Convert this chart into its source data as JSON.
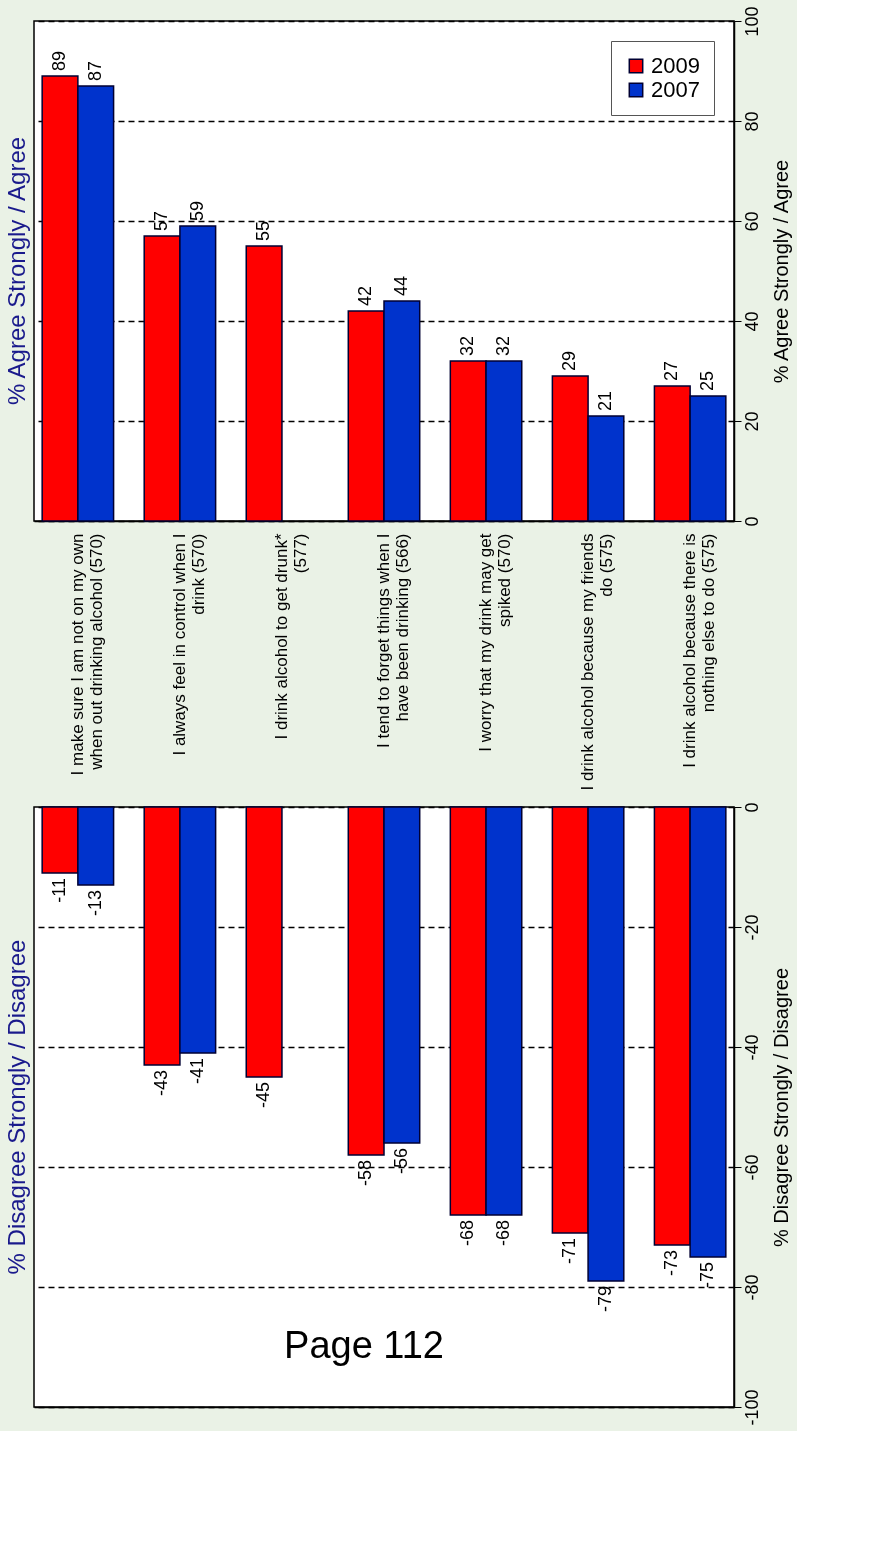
{
  "chart_data": [
    {
      "type": "bar",
      "title": "% Agree Strongly / Agree",
      "ylabel": "% Agree Strongly / Agree",
      "categories": [
        "I make sure I am not on my own when out drinking alcohol (570)",
        "I always feel in control when I drink (570)",
        "I drink alcohol to get drunk* (577)",
        "I tend to forget things when I have been drinking (566)",
        "I worry that my drink may get spiked (570)",
        "I drink alcohol because my friends do (575)",
        "I drink alcohol because there is nothing else to do (575)"
      ],
      "series": [
        {
          "name": "2009",
          "color": "#ff0000",
          "values": [
            89,
            57,
            55,
            42,
            32,
            29,
            27
          ]
        },
        {
          "name": "2007",
          "color": "#0033cc",
          "values": [
            87,
            59,
            null,
            44,
            32,
            21,
            25
          ]
        }
      ],
      "ylim": [
        0,
        100
      ],
      "yticks": [
        0,
        20,
        40,
        60,
        80,
        100
      ],
      "grid": "y",
      "legend": "top right",
      "data_labels": true
    },
    {
      "type": "bar",
      "title": "% Disagree Strongly / Disagree",
      "ylabel": "% Disagree Strongly / Disagree",
      "categories": [
        null,
        null,
        null,
        null,
        null,
        null,
        null
      ],
      "tick_labels": "y",
      "series": [
        {
          "name": "2009",
          "color": "#ff0000",
          "values": [
            -11,
            -43,
            -45,
            -58,
            -68,
            -71,
            -73
          ]
        },
        {
          "name": "2007",
          "color": "#0033cc",
          "values": [
            -13,
            -41,
            null,
            -56,
            -68,
            -79,
            -75
          ]
        }
      ],
      "ylim": [
        -100,
        0
      ],
      "yticks": [
        0,
        -20,
        -40,
        -60,
        -80,
        -100
      ],
      "grid": "y",
      "legend": false,
      "data_labels": true,
      "annotations": [
        "Page 112"
      ]
    }
  ]
}
